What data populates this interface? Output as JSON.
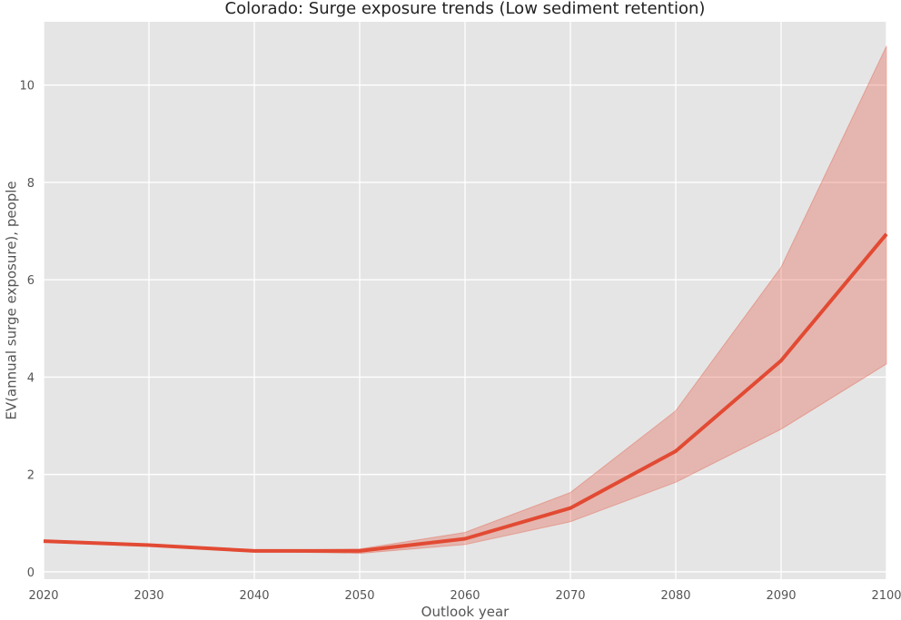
{
  "chart_data": {
    "type": "line",
    "title": "Colorado: Surge exposure trends (Low sediment retention)",
    "xlabel": "Outlook year",
    "ylabel": "EV(annual surge exposure), people",
    "xlim": [
      2020,
      2100
    ],
    "ylim": [
      -0.15,
      11.3
    ],
    "x_ticks": [
      2020,
      2030,
      2040,
      2050,
      2060,
      2070,
      2080,
      2090,
      2100
    ],
    "y_ticks": [
      0,
      2,
      4,
      6,
      8,
      10
    ],
    "grid": true,
    "series": [
      {
        "x": [
          2020,
          2030,
          2040,
          2050,
          2060,
          2070,
          2080,
          2090,
          2100
        ],
        "y": [
          0.63,
          0.55,
          0.43,
          0.43,
          0.68,
          1.31,
          2.48,
          4.34,
          6.94
        ],
        "lower": [
          0.63,
          0.55,
          0.42,
          0.38,
          0.56,
          1.03,
          1.84,
          2.93,
          4.27
        ],
        "upper": [
          0.63,
          0.55,
          0.44,
          0.47,
          0.81,
          1.63,
          3.31,
          6.26,
          10.8
        ],
        "color": "#E24A33",
        "band_color": "#E24A33"
      }
    ],
    "colors": {
      "plot_bg": "#E5E5E5",
      "grid": "#FFFFFF"
    }
  }
}
